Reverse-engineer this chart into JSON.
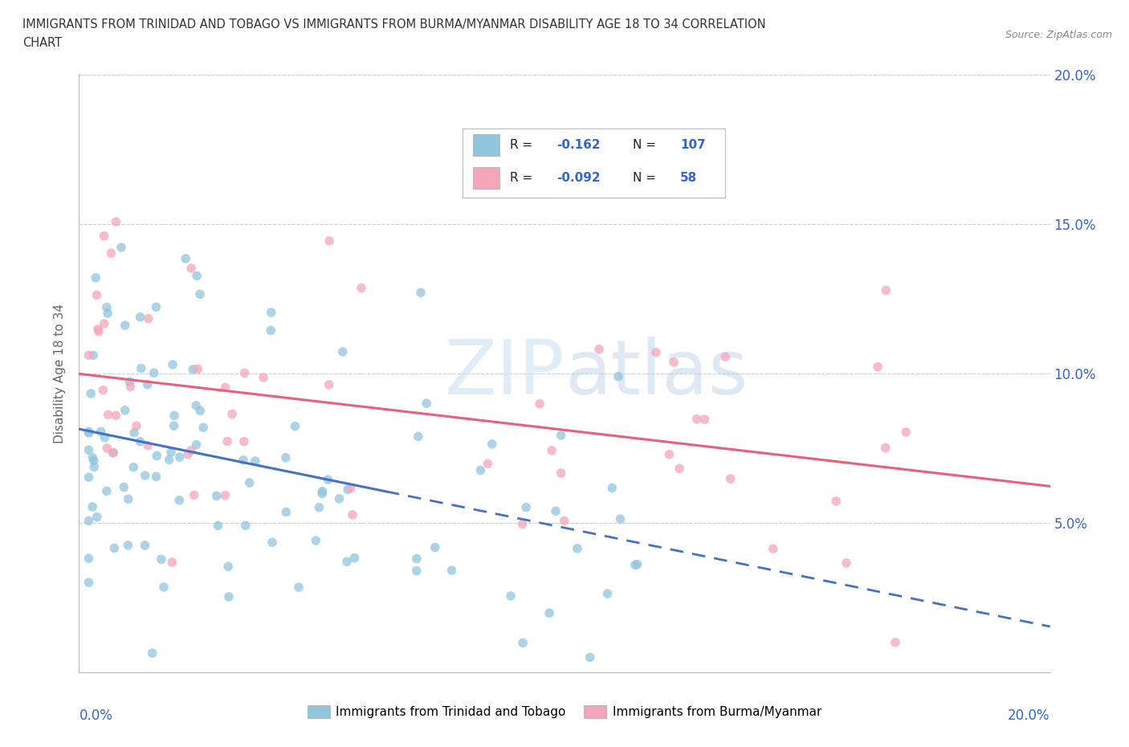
{
  "title_line1": "IMMIGRANTS FROM TRINIDAD AND TOBAGO VS IMMIGRANTS FROM BURMA/MYANMAR DISABILITY AGE 18 TO 34 CORRELATION",
  "title_line2": "CHART",
  "source": "Source: ZipAtlas.com",
  "ylabel": "Disability Age 18 to 34",
  "xlim": [
    0.0,
    0.2
  ],
  "ylim": [
    0.0,
    0.2
  ],
  "ytick_labels": [
    "5.0%",
    "10.0%",
    "15.0%",
    "20.0%"
  ],
  "ytick_vals": [
    0.05,
    0.1,
    0.15,
    0.2
  ],
  "watermark": "ZIPatlas",
  "legend_R1": "-0.162",
  "legend_N1": "107",
  "legend_R2": "-0.092",
  "legend_N2": "58",
  "series1_color": "#92C5DE",
  "series2_color": "#F4A6B8",
  "trend1_color": "#4472C4",
  "trend2_color": "#E8607A",
  "series1_label": "Immigrants from Trinidad and Tobago",
  "series2_label": "Immigrants from Burma/Myanmar",
  "background_color": "#ffffff",
  "grid_color": "#cccccc",
  "title_color": "#333333",
  "axis_label_color": "#3366CC",
  "ylabel_color": "#666666",
  "source_color": "#888888",
  "watermark_color": "#D0E8F5"
}
